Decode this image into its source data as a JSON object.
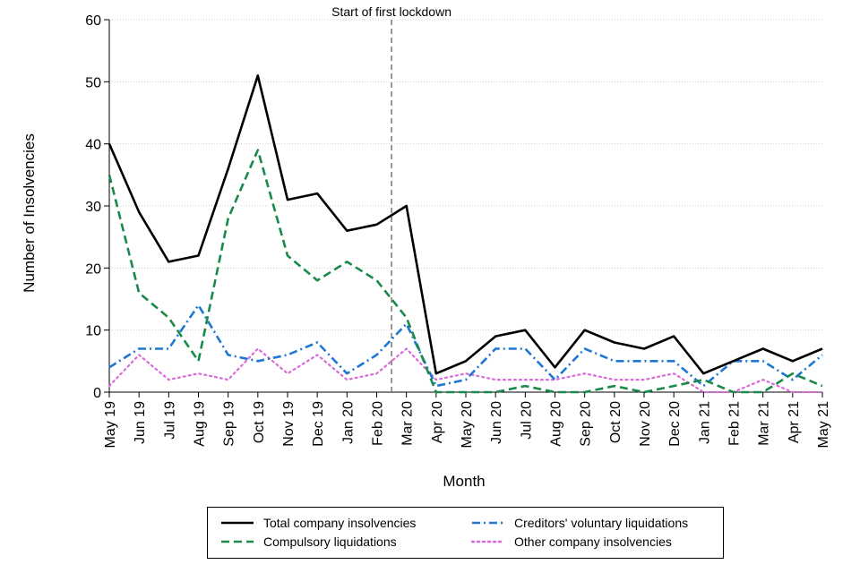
{
  "chart_data": {
    "type": "line",
    "title": "",
    "xlabel": "Month",
    "ylabel": "Number of Insolvencies",
    "ylim": [
      0,
      60
    ],
    "yticks": [
      0,
      10,
      20,
      30,
      40,
      50,
      60
    ],
    "grid": "horizontal dotted",
    "legend_position": "bottom",
    "categories": [
      "May 19",
      "Jun 19",
      "Jul 19",
      "Aug 19",
      "Sep 19",
      "Oct 19",
      "Nov 19",
      "Dec 19",
      "Jan 20",
      "Feb 20",
      "Mar 20",
      "Apr 20",
      "May 20",
      "Jun 20",
      "Jul 20",
      "Aug 20",
      "Sep 20",
      "Oct 20",
      "Nov 20",
      "Dec 20",
      "Jan 21",
      "Feb 21",
      "Mar 21",
      "Apr 21",
      "May 21"
    ],
    "annotation": {
      "text": "Start of first lockdown",
      "x_between": [
        "Feb 20",
        "Mar 20"
      ]
    },
    "series": [
      {
        "name": "Total company insolvencies",
        "color": "#000000",
        "style": "solid",
        "values": [
          40,
          29,
          21,
          22,
          36,
          51,
          31,
          32,
          26,
          27,
          30,
          3,
          5,
          9,
          10,
          4,
          10,
          8,
          7,
          9,
          3,
          5,
          7,
          5,
          7
        ]
      },
      {
        "name": "Compulsory liquidations",
        "color": "#1a8a4a",
        "style": "dashed",
        "values": [
          35,
          16,
          12,
          5,
          28,
          39,
          22,
          18,
          21,
          18,
          12,
          0,
          0,
          0,
          1,
          0,
          0,
          1,
          0,
          1,
          2,
          0,
          0,
          3,
          1
        ]
      },
      {
        "name": "Creditors' voluntary liquidations",
        "color": "#1f77d4",
        "style": "dashdot",
        "values": [
          4,
          7,
          7,
          14,
          6,
          5,
          6,
          8,
          3,
          6,
          11,
          1,
          2,
          7,
          7,
          2,
          7,
          5,
          5,
          5,
          1,
          5,
          5,
          2,
          6
        ]
      },
      {
        "name": "Other company insolvencies",
        "color": "#d96ad9",
        "style": "dotted",
        "values": [
          1,
          6,
          2,
          3,
          2,
          7,
          3,
          6,
          2,
          3,
          7,
          2,
          3,
          2,
          2,
          2,
          3,
          2,
          2,
          3,
          0,
          0,
          2,
          0,
          0
        ]
      }
    ]
  }
}
